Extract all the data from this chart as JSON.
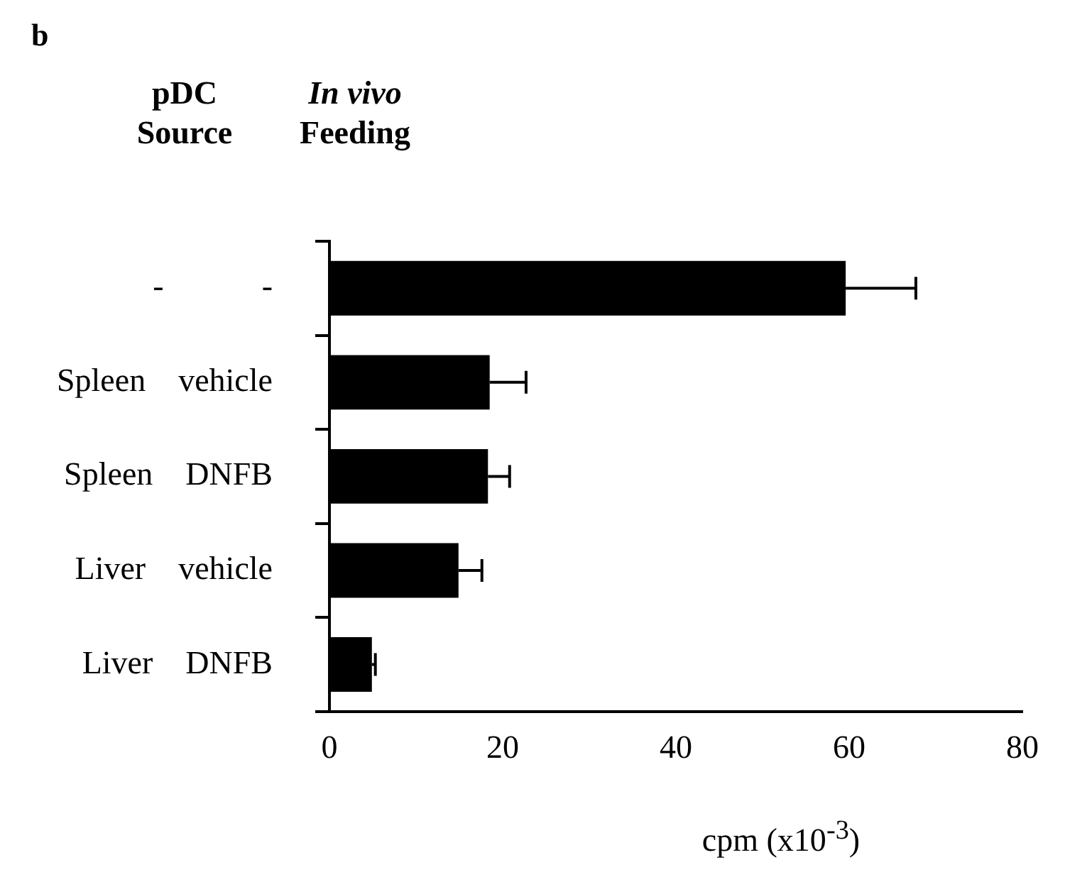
{
  "chart_data": {
    "type": "bar",
    "orientation": "horizontal",
    "title": "b",
    "categories": [
      "-            -",
      "Spleen    vehicle",
      "Spleen    DNFB",
      "Liver    vehicle",
      "Liver    DNFB"
    ],
    "values": [
      59.6,
      18.5,
      18.3,
      14.9,
      4.9
    ],
    "errors": [
      8.1,
      4.2,
      2.5,
      2.7,
      0.4
    ],
    "color": "#000000",
    "xlabel": "cpm (x10$^{-3}$)",
    "xlim": [
      0,
      80
    ],
    "xticks": [
      0,
      20,
      40,
      60,
      80
    ],
    "annotations": [
      "pDC Source",
      "In vivo Feeding"
    ],
    "grid": false,
    "legend": false
  }
}
